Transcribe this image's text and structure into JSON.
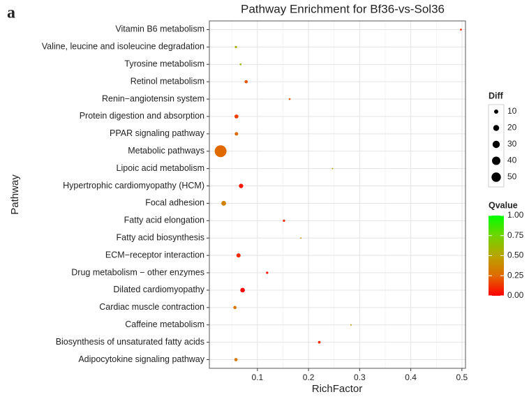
{
  "panel_label": "a",
  "chart_data": {
    "type": "bubble",
    "title": "Pathway Enrichment for Bf36-vs-Sol36",
    "x_label": "RichFactor",
    "y_label": "Pathway",
    "categories": [
      "Vitamin B6 metabolism",
      "Valine, leucine and isoleucine degradation",
      "Tyrosine metabolism",
      "Retinol metabolism",
      "Renin−angiotensin system",
      "Protein digestion and absorption",
      "PPAR signaling pathway",
      "Metabolic pathways",
      "Lipoic acid metabolism",
      "Hypertrophic cardiomyopathy (HCM)",
      "Focal adhesion",
      "Fatty acid elongation",
      "Fatty acid biosynthesis",
      "ECM−receptor interaction",
      "Drug metabolism − other enzymes",
      "Dilated cardiomyopathy",
      "Cardiac muscle contraction",
      "Caffeine metabolism",
      "Biosynthesis of unsaturated fatty acids",
      "Adipocytokine signaling pathway"
    ],
    "x": [
      0.498,
      0.058,
      0.067,
      0.078,
      0.163,
      0.059,
      0.059,
      0.028,
      0.247,
      0.068,
      0.034,
      0.152,
      0.185,
      0.063,
      0.119,
      0.071,
      0.056,
      0.283,
      0.221,
      0.058
    ],
    "diff": [
      2,
      3,
      2,
      6,
      2,
      9,
      7,
      80,
      1,
      11,
      13,
      3,
      1,
      10,
      3,
      12,
      6,
      1,
      4,
      6
    ],
    "qvalue": [
      0.1,
      0.55,
      0.6,
      0.2,
      0.2,
      0.15,
      0.25,
      0.25,
      0.45,
      0.05,
      0.35,
      0.1,
      0.4,
      0.1,
      0.05,
      0.02,
      0.3,
      0.4,
      0.1,
      0.3
    ],
    "xlim": [
      0.006,
      0.507
    ],
    "xticks": [
      0.1,
      0.2,
      0.3,
      0.4,
      0.5
    ],
    "grid": true,
    "size_legend": {
      "title": "Diff",
      "ticks": [
        10,
        20,
        30,
        40,
        50
      ]
    },
    "color_legend": {
      "title": "Qvalue",
      "lim": [
        0,
        1
      ],
      "ticks": [
        {
          "value": 1,
          "label": "1.00"
        },
        {
          "value": 0.75,
          "label": "0.75"
        },
        {
          "value": 0.5,
          "label": "0.50"
        },
        {
          "value": 0.25,
          "label": "0.25"
        },
        {
          "value": 0,
          "label": "0.00"
        }
      ],
      "colors": [
        "#ff0000",
        "#e06a00",
        "#b8a400",
        "#70d400",
        "#00ff00"
      ]
    }
  }
}
